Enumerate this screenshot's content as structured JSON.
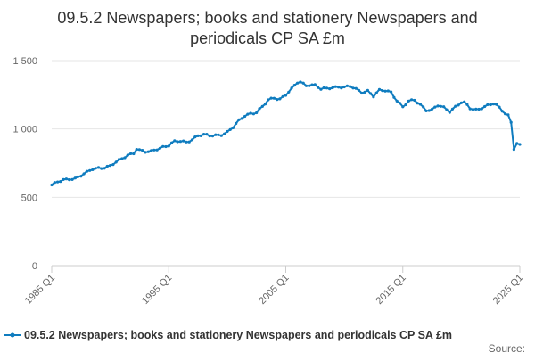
{
  "chart_data": {
    "type": "line",
    "title_lines": [
      "09.5.2 Newspapers; books and stationery Newspapers and",
      "periodicals CP SA £m"
    ],
    "xlabel": "",
    "ylabel": "",
    "ylim": [
      0,
      1500
    ],
    "y_ticks": [
      0,
      500,
      1000,
      1500
    ],
    "y_tick_labels": [
      "0",
      "500",
      "1 000",
      "1 500"
    ],
    "x_range": [
      1985.0,
      2025.0
    ],
    "x_ticks": [
      1985.0,
      1995.0,
      2005.0,
      2015.0,
      2025.0
    ],
    "x_tick_labels": [
      "1985 Q1",
      "1995 Q1",
      "2005 Q1",
      "2015 Q1",
      "2025 Q1"
    ],
    "grid": "horizontal",
    "legend_position": "bottom",
    "series": [
      {
        "name": "09.5.2 Newspapers; books and stationery Newspapers and periodicals CP SA £m",
        "color": "#0f7cbf",
        "anchors": [
          [
            1985.0,
            590
          ],
          [
            1985.5,
            610
          ],
          [
            1986.0,
            625
          ],
          [
            1986.5,
            635
          ],
          [
            1987.0,
            640
          ],
          [
            1987.5,
            660
          ],
          [
            1988.0,
            680
          ],
          [
            1988.5,
            705
          ],
          [
            1989.0,
            715
          ],
          [
            1989.5,
            720
          ],
          [
            1990.0,
            730
          ],
          [
            1990.5,
            755
          ],
          [
            1991.0,
            780
          ],
          [
            1991.5,
            810
          ],
          [
            1992.0,
            825
          ],
          [
            1992.2,
            860
          ],
          [
            1992.5,
            845
          ],
          [
            1993.0,
            830
          ],
          [
            1993.5,
            835
          ],
          [
            1994.0,
            855
          ],
          [
            1994.5,
            870
          ],
          [
            1995.0,
            880
          ],
          [
            1995.5,
            905
          ],
          [
            1996.0,
            910
          ],
          [
            1996.5,
            905
          ],
          [
            1997.0,
            925
          ],
          [
            1997.5,
            950
          ],
          [
            1998.0,
            955
          ],
          [
            1998.5,
            950
          ],
          [
            1999.0,
            955
          ],
          [
            1999.5,
            960
          ],
          [
            2000.0,
            975
          ],
          [
            2000.5,
            1010
          ],
          [
            2001.0,
            1060
          ],
          [
            2001.5,
            1100
          ],
          [
            2002.0,
            1115
          ],
          [
            2002.5,
            1120
          ],
          [
            2003.0,
            1160
          ],
          [
            2003.5,
            1210
          ],
          [
            2004.0,
            1230
          ],
          [
            2004.5,
            1220
          ],
          [
            2005.0,
            1250
          ],
          [
            2005.5,
            1290
          ],
          [
            2006.0,
            1340
          ],
          [
            2006.3,
            1345
          ],
          [
            2006.7,
            1320
          ],
          [
            2007.0,
            1325
          ],
          [
            2007.5,
            1320
          ],
          [
            2008.0,
            1290
          ],
          [
            2008.5,
            1295
          ],
          [
            2009.0,
            1305
          ],
          [
            2009.5,
            1310
          ],
          [
            2010.0,
            1305
          ],
          [
            2010.5,
            1310
          ],
          [
            2011.0,
            1290
          ],
          [
            2011.5,
            1270
          ],
          [
            2012.0,
            1280
          ],
          [
            2012.5,
            1240
          ],
          [
            2013.0,
            1280
          ],
          [
            2013.5,
            1280
          ],
          [
            2014.0,
            1270
          ],
          [
            2014.5,
            1210
          ],
          [
            2015.0,
            1160
          ],
          [
            2015.5,
            1200
          ],
          [
            2016.0,
            1210
          ],
          [
            2016.5,
            1180
          ],
          [
            2017.0,
            1140
          ],
          [
            2017.5,
            1140
          ],
          [
            2018.0,
            1170
          ],
          [
            2018.5,
            1155
          ],
          [
            2019.0,
            1130
          ],
          [
            2019.5,
            1165
          ],
          [
            2020.0,
            1195
          ],
          [
            2020.3,
            1190
          ],
          [
            2020.8,
            1145
          ],
          [
            2021.3,
            1140
          ],
          [
            2021.8,
            1160
          ],
          [
            2022.3,
            1175
          ],
          [
            2022.8,
            1185
          ],
          [
            2023.3,
            1150
          ],
          [
            2023.8,
            1110
          ],
          [
            2024.2,
            1090
          ],
          [
            2024.5,
            860
          ],
          [
            2024.75,
            895
          ],
          [
            2025.0,
            880
          ]
        ]
      }
    ]
  },
  "source": {
    "label": "Source:"
  }
}
